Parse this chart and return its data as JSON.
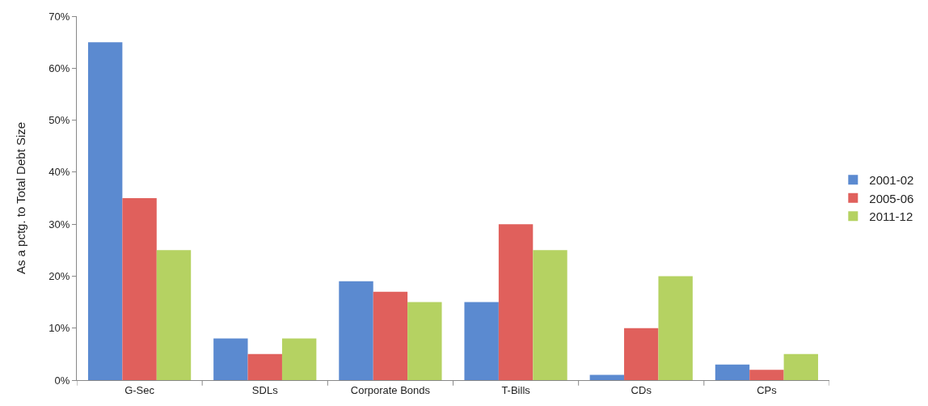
{
  "chart_data": {
    "type": "bar",
    "ylabel": "As a pctg. to Total Debt Size",
    "categories": [
      "G-Sec",
      "SDLs",
      "Corporate Bonds",
      "T-Bills",
      "CDs",
      "CPs"
    ],
    "series": [
      {
        "name": "2001-02",
        "color": "#5b8ad0",
        "values": [
          65,
          8,
          19,
          15,
          1,
          3
        ]
      },
      {
        "name": "2005-06",
        "color": "#e0605c",
        "values": [
          35,
          5,
          17,
          30,
          10,
          2
        ]
      },
      {
        "name": "2011-12",
        "color": "#b5d262",
        "values": [
          25,
          8,
          15,
          25,
          20,
          5
        ]
      }
    ],
    "ylim": [
      0,
      70
    ],
    "yticks": [
      {
        "value": 0,
        "label": "0%"
      },
      {
        "value": 10,
        "label": "10%"
      },
      {
        "value": 20,
        "label": "20%"
      },
      {
        "value": 30,
        "label": "30%"
      },
      {
        "value": 40,
        "label": "40%"
      },
      {
        "value": 50,
        "label": "50%"
      },
      {
        "value": 60,
        "label": "60%"
      },
      {
        "value": 70,
        "label": "70%"
      }
    ],
    "legend": "right"
  }
}
